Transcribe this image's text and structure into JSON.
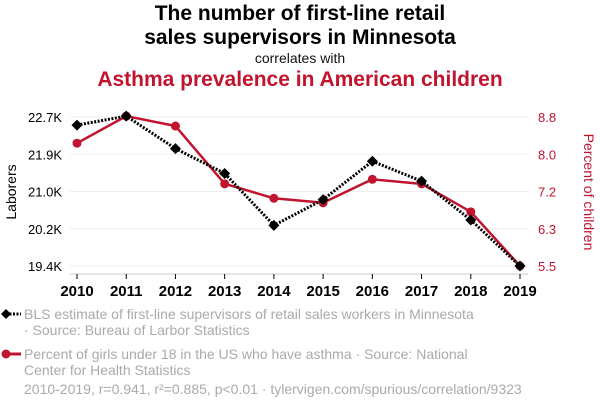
{
  "header": {
    "title_line1": "The number of first-line retail",
    "title_line2": "sales supervisors in Minnesota",
    "correlates": "correlates with",
    "subtitle": "Asthma prevalence in American children"
  },
  "colors": {
    "series1": "#000000",
    "series2": "#c0142f",
    "grid": "#eeeeee",
    "muted": "#aaaaaa"
  },
  "legend": {
    "series1_line1": "BLS estimate of first-line supervisors of retail sales workers in Minnesota",
    "series1_line2": "· Source: Bureau of Larbor Statistics",
    "series2_line1": "Percent of girls under 18 in the US who have asthma · Source: National",
    "series2_line2": "Center for Health Statistics"
  },
  "footer": "2010-2019, r=0.941, r²=0.885, p<0.01 · tylervigen.com/spurious/correlation/9323",
  "chart_data": {
    "type": "line",
    "title": "The number of first-line retail sales supervisors in Minnesota correlates with Asthma prevalence in American children",
    "x": [
      2010,
      2011,
      2012,
      2013,
      2014,
      2015,
      2016,
      2017,
      2018,
      2019
    ],
    "xtick_labels": [
      "2010",
      "2011",
      "2012",
      "2013",
      "2014",
      "2015",
      "2016",
      "2017",
      "2018",
      "2019"
    ],
    "series": [
      {
        "name": "BLS estimate of first-line supervisors of retail sales workers in Minnesota",
        "axis": "left",
        "style": "dotted-diamond",
        "values": [
          22520,
          22720,
          22000,
          21450,
          20300,
          20870,
          21720,
          21280,
          20420,
          19400
        ]
      },
      {
        "name": "Percent of girls under 18 in the US who have asthma",
        "axis": "right",
        "style": "solid-circle",
        "values": [
          8.22,
          8.82,
          8.6,
          7.32,
          7.0,
          6.9,
          7.42,
          7.32,
          6.7,
          5.5
        ]
      }
    ],
    "ylabel_left": "Laborers",
    "ylabel_right": "Percent of children",
    "ylim_left": [
      19400,
      22700
    ],
    "ylim_right": [
      5.5,
      8.8
    ],
    "yticks_left": [
      "22.7K",
      "21.9K",
      "21.0K",
      "20.2K",
      "19.4K"
    ],
    "yticks_right": [
      "8.8",
      "8.0",
      "7.2",
      "6.3",
      "5.5"
    ],
    "grid": true
  }
}
